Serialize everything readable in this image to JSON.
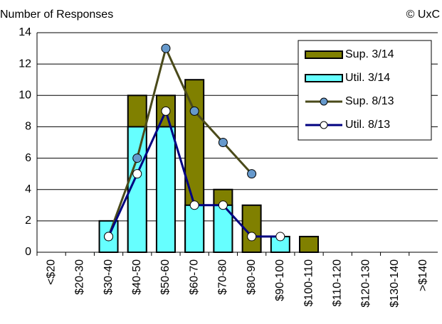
{
  "chart_data": {
    "type": "bar",
    "y_label": "Number of Responses",
    "copyright": "© UxC",
    "categories": [
      "<$20",
      "$20-30",
      "$30-40",
      "$40-50",
      "$50-60",
      "$60-70",
      "$70-80",
      "$80-90",
      "$90-100",
      "$100-110",
      "$110-120",
      "$120-130",
      "$130-140",
      ">$140"
    ],
    "series": [
      {
        "name": "Sup. 3/14",
        "type": "bar",
        "color": "#808000",
        "values": [
          0,
          0,
          0,
          10,
          10,
          11,
          4,
          3,
          0,
          1,
          0,
          0,
          0,
          0
        ]
      },
      {
        "name": "Util. 3/14",
        "type": "bar",
        "color": "#66ffff",
        "values": [
          0,
          0,
          2,
          8,
          8,
          3,
          3,
          0,
          1,
          0,
          0,
          0,
          0,
          0
        ]
      },
      {
        "name": "Sup. 8/13",
        "type": "line",
        "color": "#4a4a1a",
        "marker_color": "#6699cc",
        "values": [
          null,
          null,
          1,
          6,
          13,
          9,
          7,
          5,
          null,
          null,
          null,
          null,
          null,
          null
        ]
      },
      {
        "name": "Util. 8/13",
        "type": "line",
        "color": "#000080",
        "marker_color": "#ffffff",
        "values": [
          null,
          null,
          1,
          5,
          9,
          3,
          3,
          1,
          1,
          null,
          null,
          null,
          null,
          null
        ]
      }
    ],
    "ylim": [
      0,
      14
    ],
    "yticks": [
      0,
      2,
      4,
      6,
      8,
      10,
      12,
      14
    ],
    "grid": true,
    "legend": "upper right"
  }
}
